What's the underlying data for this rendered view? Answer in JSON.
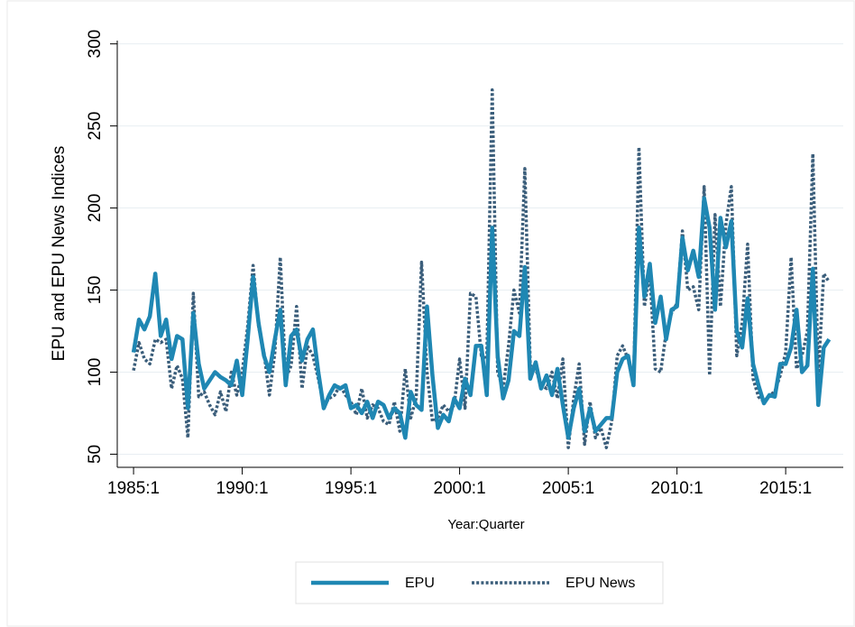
{
  "chart_data": {
    "type": "line",
    "y_label": "EPU and EPU News Indices",
    "x_label": "Year:Quarter",
    "x": [
      1985,
      1985.25,
      1985.5,
      1985.75,
      1986,
      1986.25,
      1986.5,
      1986.75,
      1987,
      1987.25,
      1987.5,
      1987.75,
      1988,
      1988.25,
      1988.5,
      1988.75,
      1989,
      1989.25,
      1989.5,
      1989.75,
      1990,
      1990.25,
      1990.5,
      1990.75,
      1991,
      1991.25,
      1991.5,
      1991.75,
      1992,
      1992.25,
      1992.5,
      1992.75,
      1993,
      1993.25,
      1993.5,
      1993.75,
      1994,
      1994.25,
      1994.5,
      1994.75,
      1995,
      1995.25,
      1995.5,
      1995.75,
      1996,
      1996.25,
      1996.5,
      1996.75,
      1997,
      1997.25,
      1997.5,
      1997.75,
      1998,
      1998.25,
      1998.5,
      1998.75,
      1999,
      1999.25,
      1999.5,
      1999.75,
      2000,
      2000.25,
      2000.5,
      2000.75,
      2001,
      2001.25,
      2001.5,
      2001.75,
      2002,
      2002.25,
      2002.5,
      2002.75,
      2003,
      2003.25,
      2003.5,
      2003.75,
      2004,
      2004.25,
      2004.5,
      2004.75,
      2005,
      2005.25,
      2005.5,
      2005.75,
      2006,
      2006.25,
      2006.5,
      2006.75,
      2007,
      2007.25,
      2007.5,
      2007.75,
      2008,
      2008.25,
      2008.5,
      2008.75,
      2009,
      2009.25,
      2009.5,
      2009.75,
      2010,
      2010.25,
      2010.5,
      2010.75,
      2011,
      2011.25,
      2011.5,
      2011.75,
      2012,
      2012.25,
      2012.5,
      2012.75,
      2013,
      2013.25,
      2013.5,
      2013.75,
      2014,
      2014.25,
      2014.5,
      2014.75,
      2015,
      2015.25,
      2015.5,
      2015.75,
      2016,
      2016.25,
      2016.5,
      2016.75,
      2017
    ],
    "series": [
      {
        "name": "EPU",
        "color": "#1f87b3",
        "line_style": "solid",
        "values": [
          112,
          132,
          126,
          134,
          160,
          122,
          132,
          108,
          122,
          120,
          78,
          136,
          105,
          90,
          95,
          100,
          97,
          95,
          92,
          107,
          86,
          120,
          158,
          130,
          110,
          100,
          120,
          138,
          92,
          122,
          126,
          107,
          120,
          126,
          100,
          78,
          86,
          92,
          90,
          92,
          78,
          80,
          75,
          82,
          72,
          82,
          80,
          72,
          78,
          75,
          60,
          88,
          80,
          77,
          140,
          98,
          66,
          74,
          70,
          84,
          78,
          96,
          86,
          116,
          116,
          86,
          188,
          110,
          84,
          95,
          125,
          122,
          164,
          96,
          106,
          90,
          98,
          86,
          102,
          80,
          60,
          78,
          90,
          64,
          78,
          64,
          68,
          72,
          72,
          100,
          108,
          110,
          92,
          188,
          146,
          166,
          130,
          146,
          120,
          138,
          140,
          182,
          162,
          174,
          158,
          206,
          188,
          138,
          194,
          176,
          192,
          125,
          115,
          145,
          105,
          92,
          81,
          86,
          85,
          105,
          105,
          115,
          138,
          100,
          104,
          163,
          80,
          115,
          120
        ]
      },
      {
        "name": "EPU News",
        "color": "#3a5d7a",
        "line_style": "dotted",
        "values": [
          101,
          118,
          108,
          105,
          120,
          118,
          120,
          90,
          104,
          96,
          60,
          148,
          85,
          88,
          80,
          74,
          88,
          76,
          100,
          86,
          100,
          128,
          165,
          128,
          112,
          86,
          112,
          170,
          96,
          104,
          140,
          90,
          116,
          110,
          96,
          80,
          84,
          86,
          92,
          86,
          82,
          74,
          90,
          72,
          80,
          78,
          70,
          68,
          82,
          64,
          102,
          72,
          84,
          167,
          100,
          70,
          72,
          80,
          76,
          80,
          108,
          78,
          148,
          146,
          110,
          108,
          272,
          100,
          90,
          116,
          150,
          136,
          224,
          104,
          102,
          92,
          90,
          100,
          84,
          108,
          54,
          84,
          105,
          56,
          82,
          60,
          66,
          54,
          70,
          110,
          116,
          108,
          92,
          237,
          140,
          160,
          102,
          100,
          124,
          136,
          142,
          186,
          150,
          152,
          138,
          213,
          98,
          196,
          140,
          190,
          213,
          110,
          130,
          178,
          96,
          85,
          82,
          86,
          88,
          98,
          112,
          170,
          102,
          110,
          125,
          233,
          98,
          160,
          155
        ]
      }
    ],
    "xlim": [
      1984.25,
      2017.65
    ],
    "ylim": [
      42,
      302
    ],
    "xticks": [
      {
        "value": 1985,
        "label": "1985:1"
      },
      {
        "value": 1990,
        "label": "1990:1"
      },
      {
        "value": 1995,
        "label": "1995:1"
      },
      {
        "value": 2000,
        "label": "2000:1"
      },
      {
        "value": 2005,
        "label": "2005:1"
      },
      {
        "value": 2010,
        "label": "2010:1"
      },
      {
        "value": 2015,
        "label": "2015:1"
      }
    ],
    "yticks": [
      50,
      100,
      150,
      200,
      250,
      300
    ],
    "grid": true,
    "legend": "bottom"
  }
}
